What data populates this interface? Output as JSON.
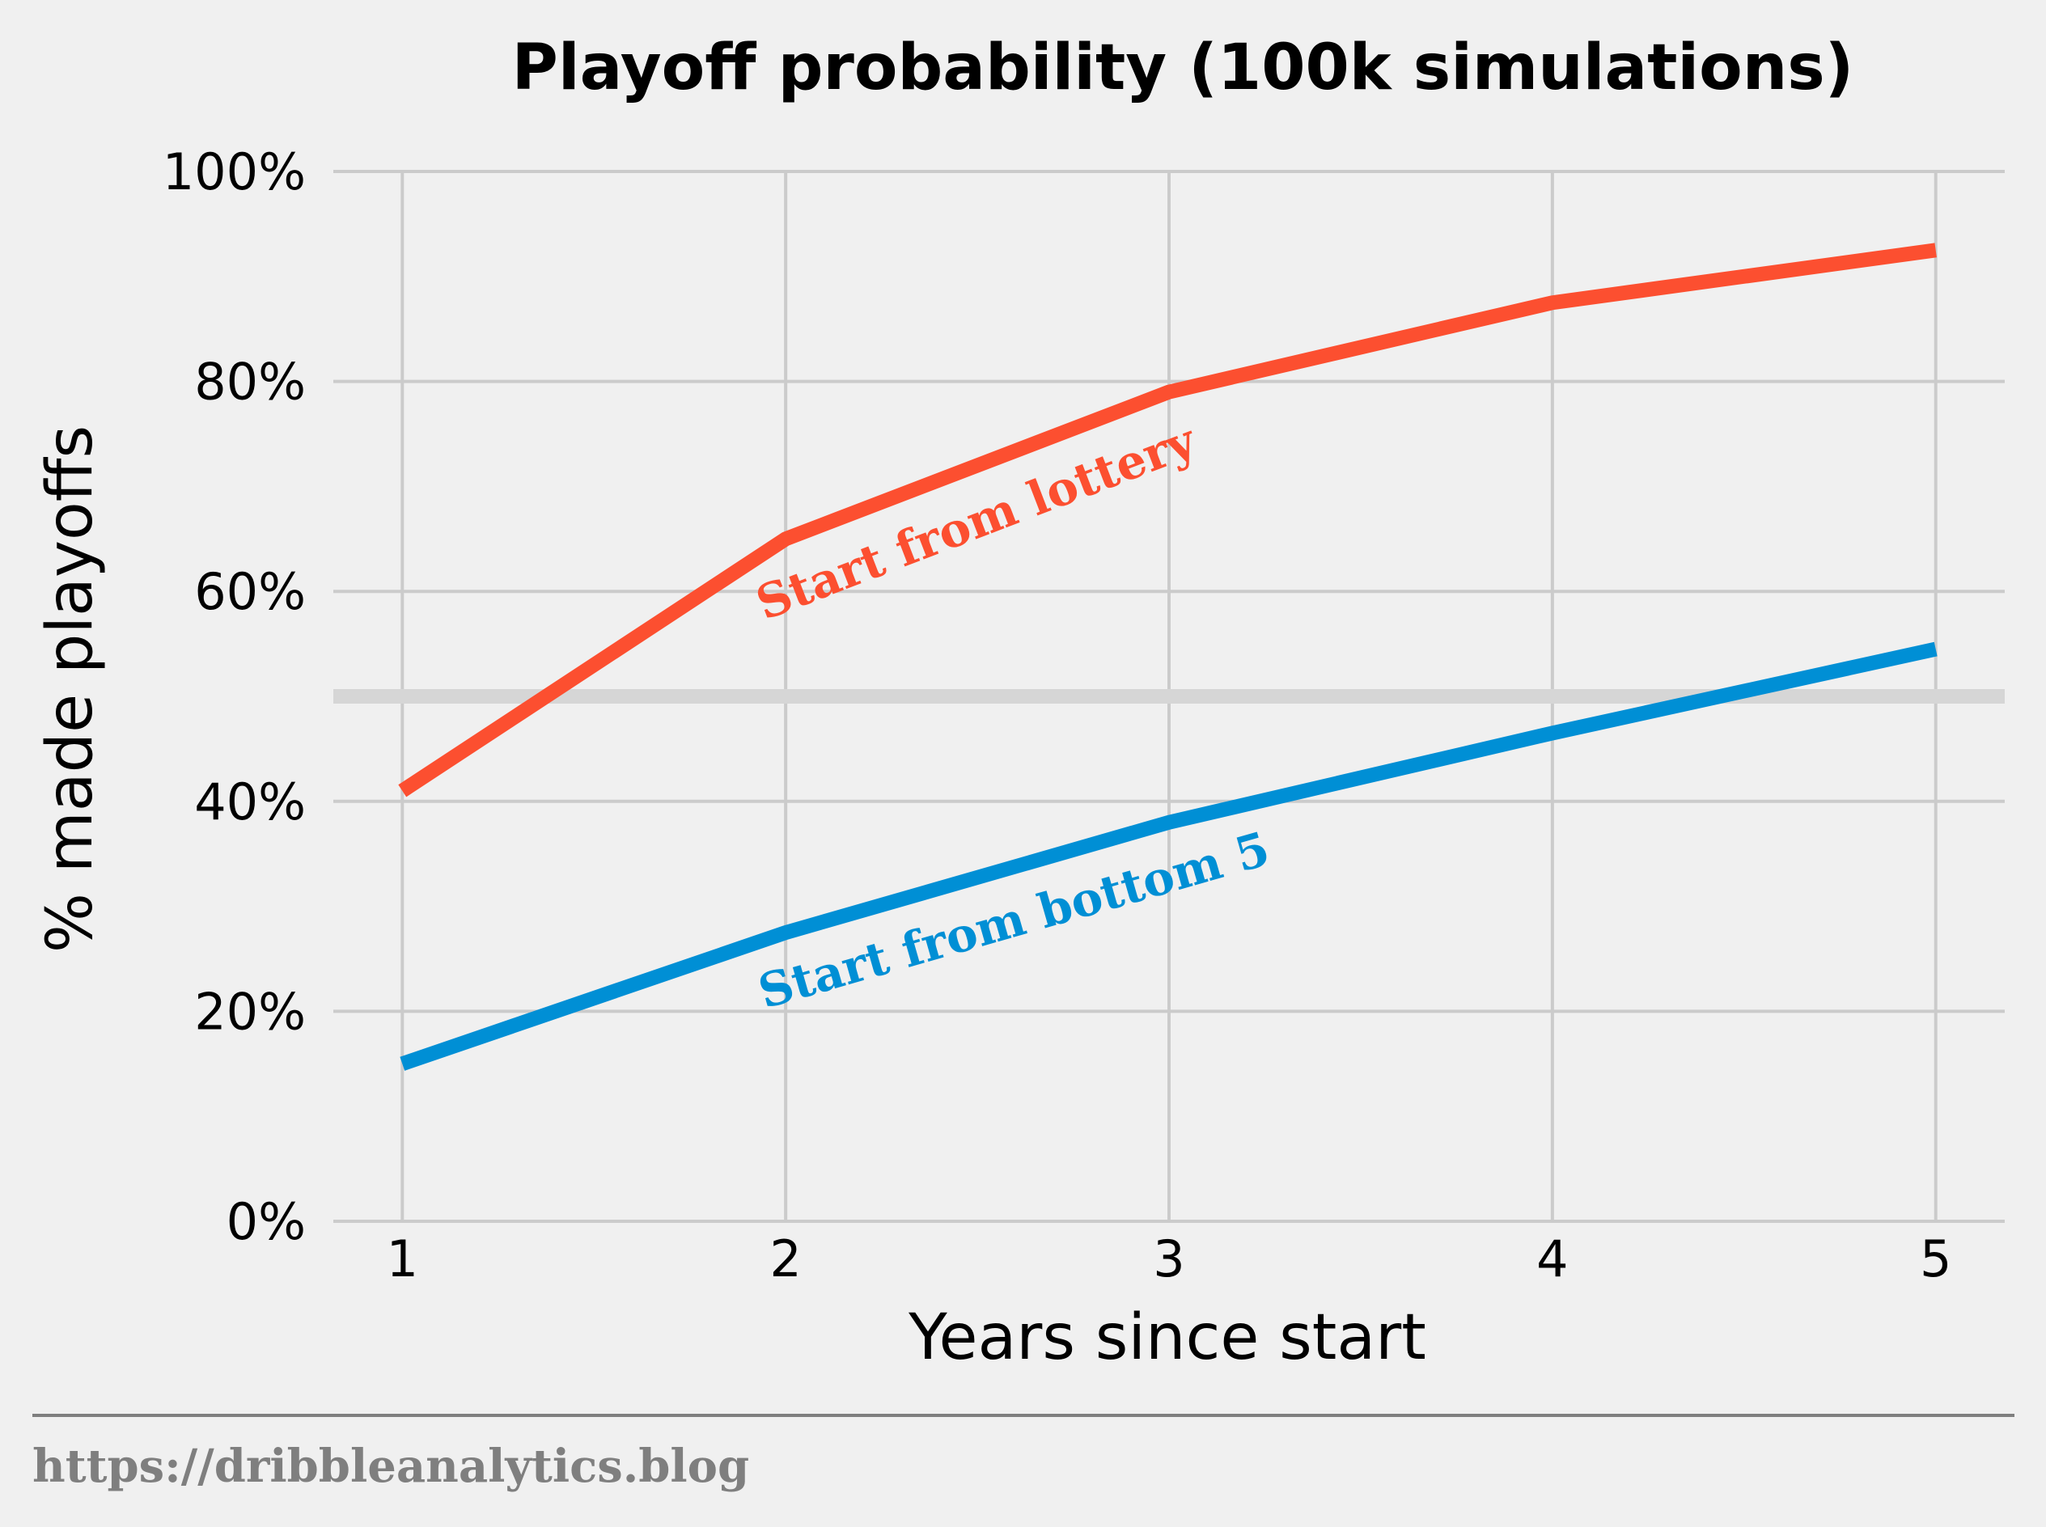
{
  "chart_data": {
    "type": "line",
    "title": "Playoff probability (100k simulations)",
    "xlabel": "Years since start",
    "ylabel": "% made playoffs",
    "x": [
      1,
      2,
      3,
      4,
      5
    ],
    "x_tick_labels": [
      "1",
      "2",
      "3",
      "4",
      "5"
    ],
    "xlim": [
      0.82,
      5.18
    ],
    "ylim": [
      0,
      100
    ],
    "y_ticks": [
      0,
      20,
      40,
      60,
      80,
      100
    ],
    "y_tick_labels": [
      "0%",
      "20%",
      "40%",
      "60%",
      "80%",
      "100%"
    ],
    "grid": true,
    "reference_line": {
      "y": 50,
      "color": "#d6d6d6"
    },
    "series": [
      {
        "label": "Start from lottery",
        "color": "#fc4f30",
        "values": [
          41,
          65,
          79,
          87.5,
          92.5
        ]
      },
      {
        "label": "Start from bottom 5",
        "color": "#008fd5",
        "values": [
          15,
          27.5,
          38,
          46.5,
          54.5
        ]
      }
    ]
  },
  "footer": {
    "credit": "https://dribbleanalytics.blog"
  },
  "colors": {
    "background": "#f0f0f0",
    "grid": "#cbcbcb",
    "text": "#000000",
    "credit": "#7f7f7f"
  }
}
